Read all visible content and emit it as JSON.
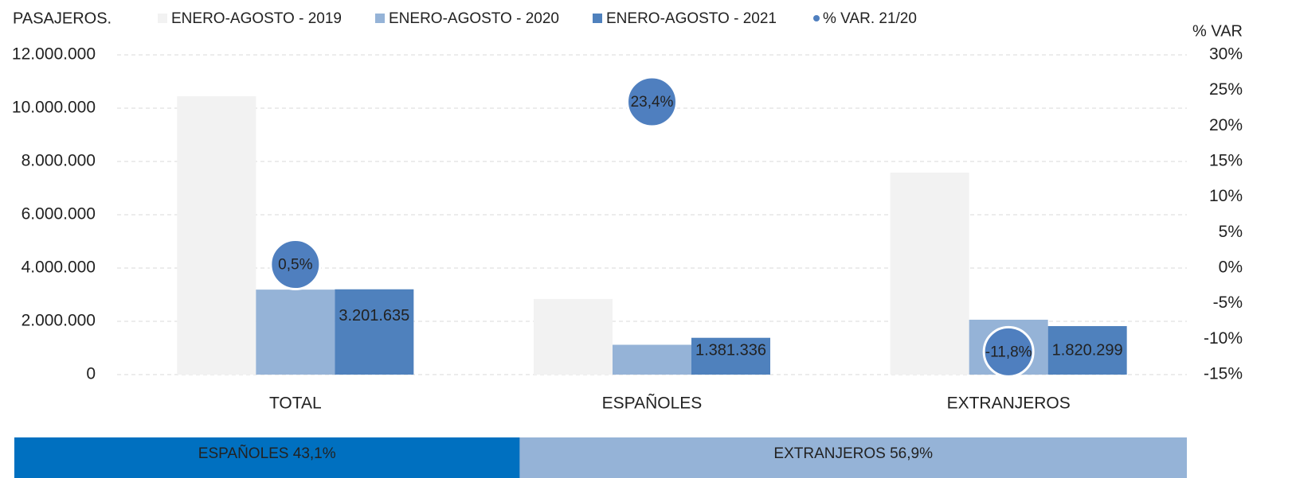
{
  "chart_data": {
    "type": "bar",
    "ylabel": "PASAJEROS.",
    "y2label": "% VAR",
    "categories": [
      "TOTAL",
      "ESPAÑOLES",
      "EXTRANJEROS"
    ],
    "series": [
      {
        "name": "ENERO-AGOSTO - 2019",
        "color": "#f2f2f2",
        "type": "bar",
        "values": [
          10450000,
          2840000,
          7580000
        ]
      },
      {
        "name": "ENERO-AGOSTO - 2020",
        "color": "#95b3d7",
        "type": "bar",
        "values": [
          3190000,
          1120000,
          2060000
        ]
      },
      {
        "name": "ENERO-AGOSTO - 2021",
        "color": "#4f81bd",
        "type": "bar",
        "values": [
          3201635,
          1381336,
          1820299
        ],
        "value_labels": [
          "3.201.635",
          "1.381.336",
          "1.820.299"
        ]
      },
      {
        "name": "% VAR. 21/20",
        "color": "#4f7fbf",
        "type": "scatter",
        "axis": "y2",
        "values": [
          0.5,
          23.4,
          -11.8
        ],
        "value_labels": [
          "0,5%",
          "23,4%",
          "-11,8%"
        ]
      }
    ],
    "ylim": [
      0,
      12000000
    ],
    "yticks": [
      {
        "value": 0,
        "label": "0"
      },
      {
        "value": 2000000,
        "label": "2.000.000"
      },
      {
        "value": 4000000,
        "label": "4.000.000"
      },
      {
        "value": 6000000,
        "label": "6.000.000"
      },
      {
        "value": 8000000,
        "label": "8.000.000"
      },
      {
        "value": 10000000,
        "label": "10.000.000"
      },
      {
        "value": 12000000,
        "label": "12.000.000"
      }
    ],
    "y2lim": [
      -15,
      30
    ],
    "y2ticks": [
      {
        "value": -15,
        "label": "-15%"
      },
      {
        "value": -10,
        "label": "-10%"
      },
      {
        "value": -5,
        "label": "-5%"
      },
      {
        "value": 0,
        "label": "0%"
      },
      {
        "value": 5,
        "label": "5%"
      },
      {
        "value": 10,
        "label": "10%"
      },
      {
        "value": 15,
        "label": "15%"
      },
      {
        "value": 20,
        "label": "20%"
      },
      {
        "value": 25,
        "label": "25%"
      },
      {
        "value": 30,
        "label": "30%"
      }
    ],
    "grid": true,
    "share": {
      "categories": [
        "ESPAÑOLES",
        "EXTRANJEROS"
      ],
      "values": [
        43.1,
        56.9
      ],
      "value_labels": [
        "ESPAÑOLES 43,1%",
        "EXTRANJEROS 56,9%"
      ],
      "colors": [
        "#0070c0",
        "#95b3d7"
      ]
    }
  }
}
